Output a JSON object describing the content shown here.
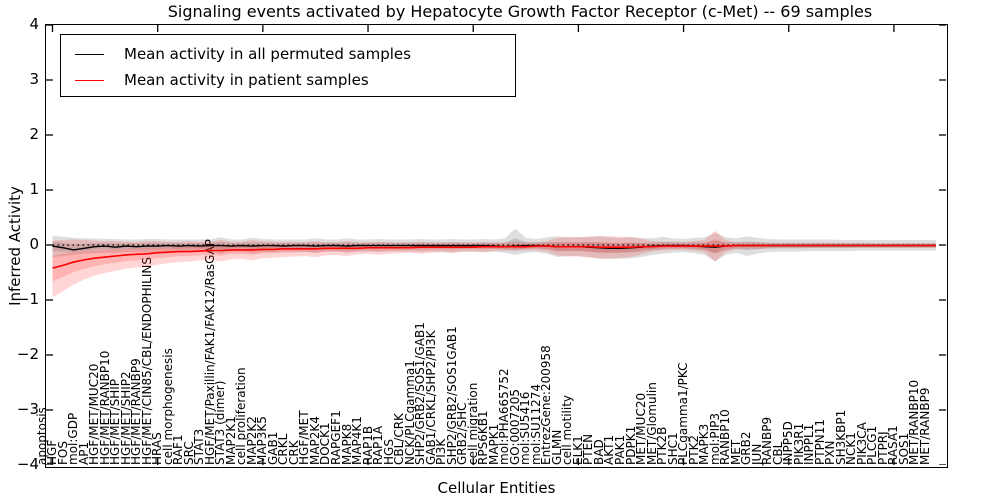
{
  "chart_data": {
    "type": "line",
    "title": "Signaling events activated by Hepatocyte Growth Factor Receptor (c-Met) -- 69 samples",
    "xlabel": "Cellular Entities",
    "ylabel": "Inferred Activity",
    "ylim": [
      -4,
      4
    ],
    "yticks": [
      4,
      3,
      2,
      1,
      0,
      -1,
      -2,
      -3,
      -4
    ],
    "grid": false,
    "legend_position": "upper left",
    "zero_line": {
      "y": 0,
      "style": "dotted",
      "color": "#000000"
    },
    "categories": [
      "apoptosis",
      "HGF",
      "FOS",
      "mol:GDP",
      "AP1",
      "HGF/MET/MUC20",
      "HGF/MET/RANBP10",
      "HGF/MET/SHIP",
      "HGF/MET/SHIP2",
      "HGF/MET/RANBP9",
      "HGF/MET/CIN85/CBL/ENDOPHILINS",
      "HRAS",
      "cell morphogenesis",
      "RAF1",
      "SRC",
      "STAT3",
      "HGF/MET/Paxillin/FAK1/FAK12/RasGAP",
      "STAT3 (dimer)",
      "MAP2K1",
      "cell proliferation",
      "MAP2K2",
      "MAP3K5",
      "GAB1",
      "CRKL",
      "CRK",
      "HGF/MET",
      "MAP2K4",
      "DOCK1",
      "RAPGEF1",
      "MAPK8",
      "MAP4K1",
      "RAP1B",
      "RAP1A",
      "HGS",
      "CBL/CRK",
      "NCK/PLCgamma1",
      "SHP2/GRB2/SOS1/GAB1",
      "GAB1/CRKL/SHP2/PI3K",
      "PI3K",
      "SHP2/GRB2/SOS1GAB1",
      "GRB2/SHC",
      "cell migration",
      "RPS6KB1",
      "MAPK1",
      "mol:PHA665752",
      "GO:0007205",
      "mol:SU5416",
      "mol:SU11274",
      "EntrezGene:200958",
      "GLMN",
      "cell motility",
      "ELK1",
      "PTEN",
      "BAD",
      "AKT1",
      "PAK1",
      "PDPK1",
      "MET/MUC20",
      "MET/Glomulin",
      "PTK2B",
      "SHC1",
      "PLCgamma1/PKC",
      "PTK2",
      "MAPK3",
      "mol:PIP3",
      "RANBP10",
      "MET",
      "GRB2",
      "JUN",
      "RANBP9",
      "CBL",
      "INPP5D",
      "PIK3R1",
      "INPPL1",
      "PTPN11",
      "PXN",
      "SH3KBP1",
      "NCK1",
      "PIK3CA",
      "PLCG1",
      "PTPRJ",
      "RASA1",
      "SOS1",
      "MET/RANBP10",
      "MET/RANBP9"
    ],
    "series": [
      {
        "name": "Mean activity in all permuted samples",
        "color": "#000000",
        "band_color_rgb": "0,0,0",
        "band_alpha": 0.13,
        "values": [
          -0.02,
          -0.05,
          -0.09,
          -0.06,
          -0.03,
          -0.02,
          -0.04,
          -0.02,
          -0.03,
          -0.02,
          -0.02,
          -0.01,
          -0.02,
          -0.01,
          -0.02,
          -0.01,
          -0.01,
          -0.02,
          -0.01,
          -0.02,
          -0.01,
          -0.01,
          -0.02,
          -0.01,
          -0.01,
          -0.02,
          -0.01,
          -0.01,
          -0.02,
          -0.01,
          -0.01,
          -0.01,
          -0.01,
          -0.01,
          -0.01,
          -0.01,
          -0.01,
          -0.01,
          -0.01,
          -0.01,
          -0.01,
          -0.01,
          -0.02,
          -0.03,
          -0.02,
          -0.01,
          -0.01,
          -0.02,
          -0.03,
          -0.03,
          -0.03,
          -0.04,
          -0.05,
          -0.06,
          -0.06,
          -0.05,
          -0.04,
          -0.02,
          -0.01,
          -0.01,
          -0.01,
          -0.02,
          -0.03,
          -0.04,
          -0.02,
          -0.01,
          -0.01,
          -0.01,
          -0.01,
          -0.01,
          -0.01,
          -0.01,
          -0.01,
          -0.01,
          -0.01,
          -0.01,
          -0.01,
          -0.01,
          -0.01,
          -0.01,
          -0.01,
          -0.01,
          -0.01,
          -0.01,
          -0.01
        ],
        "band_upper": [
          0.17,
          0.15,
          0.13,
          0.12,
          0.12,
          0.11,
          0.11,
          0.1,
          0.1,
          0.11,
          0.11,
          0.1,
          0.1,
          0.1,
          0.1,
          0.1,
          0.14,
          0.1,
          0.1,
          0.13,
          0.11,
          0.1,
          0.1,
          0.1,
          0.1,
          0.12,
          0.1,
          0.1,
          0.12,
          0.1,
          0.1,
          0.11,
          0.1,
          0.1,
          0.1,
          0.11,
          0.1,
          0.1,
          0.11,
          0.1,
          0.1,
          0.11,
          0.1,
          0.12,
          0.3,
          0.13,
          0.11,
          0.14,
          0.16,
          0.14,
          0.14,
          0.15,
          0.16,
          0.14,
          0.13,
          0.15,
          0.13,
          0.12,
          0.15,
          0.12,
          0.11,
          0.13,
          0.14,
          0.22,
          0.14,
          0.12,
          0.16,
          0.13,
          0.11,
          0.1,
          0.1,
          0.1,
          0.1,
          0.1,
          0.1,
          0.09,
          0.09,
          0.09,
          0.09,
          0.09,
          0.09,
          0.09,
          0.09,
          0.09,
          0.09
        ],
        "band_lower": [
          -0.22,
          -0.2,
          -0.18,
          -0.16,
          -0.15,
          -0.14,
          -0.14,
          -0.13,
          -0.13,
          -0.13,
          -0.13,
          -0.12,
          -0.13,
          -0.12,
          -0.12,
          -0.12,
          -0.16,
          -0.12,
          -0.12,
          -0.15,
          -0.13,
          -0.12,
          -0.12,
          -0.12,
          -0.12,
          -0.14,
          -0.12,
          -0.12,
          -0.14,
          -0.12,
          -0.12,
          -0.13,
          -0.12,
          -0.12,
          -0.12,
          -0.13,
          -0.12,
          -0.12,
          -0.13,
          -0.12,
          -0.12,
          -0.13,
          -0.12,
          -0.14,
          -0.18,
          -0.14,
          -0.13,
          -0.16,
          -0.22,
          -0.2,
          -0.2,
          -0.22,
          -0.25,
          -0.26,
          -0.25,
          -0.24,
          -0.22,
          -0.18,
          -0.16,
          -0.14,
          -0.13,
          -0.15,
          -0.18,
          -0.3,
          -0.18,
          -0.14,
          -0.2,
          -0.16,
          -0.13,
          -0.12,
          -0.12,
          -0.12,
          -0.11,
          -0.11,
          -0.11,
          -0.11,
          -0.11,
          -0.1,
          -0.1,
          -0.1,
          -0.1,
          -0.1,
          -0.1,
          -0.1,
          -0.1
        ]
      },
      {
        "name": "Mean activity in patient samples",
        "color": "#ff0000",
        "band_color_rgb": "255,45,45",
        "band_alpha": 0.2,
        "values": [
          -0.42,
          -0.37,
          -0.31,
          -0.27,
          -0.24,
          -0.22,
          -0.2,
          -0.18,
          -0.17,
          -0.16,
          -0.14,
          -0.13,
          -0.12,
          -0.12,
          -0.11,
          -0.1,
          -0.1,
          -0.09,
          -0.09,
          -0.09,
          -0.08,
          -0.08,
          -0.07,
          -0.07,
          -0.07,
          -0.07,
          -0.06,
          -0.06,
          -0.06,
          -0.06,
          -0.05,
          -0.05,
          -0.05,
          -0.05,
          -0.05,
          -0.04,
          -0.04,
          -0.04,
          -0.04,
          -0.04,
          -0.04,
          -0.03,
          -0.03,
          -0.03,
          -0.03,
          -0.03,
          -0.02,
          -0.02,
          -0.03,
          -0.03,
          -0.03,
          -0.03,
          -0.04,
          -0.04,
          -0.04,
          -0.04,
          -0.03,
          -0.03,
          -0.02,
          -0.02,
          -0.02,
          -0.02,
          -0.02,
          -0.02,
          -0.02,
          -0.01,
          -0.01,
          -0.01,
          -0.01,
          -0.01,
          -0.01,
          -0.01,
          -0.01,
          -0.01,
          -0.01,
          -0.01,
          -0.01,
          -0.01,
          -0.01,
          -0.01,
          -0.01,
          -0.01,
          -0.01,
          -0.01,
          -0.01
        ],
        "band_upper": [
          0.08,
          0.09,
          0.1,
          0.09,
          0.08,
          0.07,
          0.07,
          0.06,
          0.06,
          0.07,
          0.07,
          0.06,
          0.06,
          0.07,
          0.06,
          0.06,
          0.09,
          0.06,
          0.06,
          0.09,
          0.07,
          0.06,
          0.06,
          0.06,
          0.05,
          0.07,
          0.05,
          0.05,
          0.07,
          0.05,
          0.05,
          0.06,
          0.05,
          0.05,
          0.05,
          0.06,
          0.05,
          0.05,
          0.06,
          0.05,
          0.05,
          0.05,
          0.05,
          0.05,
          0.06,
          0.05,
          0.05,
          0.07,
          0.13,
          0.14,
          0.14,
          0.15,
          0.16,
          0.16,
          0.15,
          0.14,
          0.11,
          0.07,
          0.06,
          0.06,
          0.06,
          0.07,
          0.09,
          0.26,
          0.09,
          0.05,
          0.05,
          0.05,
          0.04,
          0.04,
          0.04,
          0.04,
          0.04,
          0.04,
          0.04,
          0.04,
          0.04,
          0.04,
          0.03,
          0.03,
          0.03,
          0.03,
          0.03,
          0.03,
          0.03
        ],
        "band_lower": [
          -0.95,
          -0.84,
          -0.72,
          -0.63,
          -0.56,
          -0.51,
          -0.47,
          -0.43,
          -0.41,
          -0.39,
          -0.36,
          -0.33,
          -0.31,
          -0.3,
          -0.28,
          -0.27,
          -0.3,
          -0.26,
          -0.25,
          -0.28,
          -0.24,
          -0.23,
          -0.22,
          -0.21,
          -0.2,
          -0.22,
          -0.19,
          -0.18,
          -0.2,
          -0.17,
          -0.16,
          -0.18,
          -0.16,
          -0.15,
          -0.14,
          -0.16,
          -0.14,
          -0.13,
          -0.15,
          -0.12,
          -0.12,
          -0.13,
          -0.11,
          -0.11,
          -0.11,
          -0.1,
          -0.1,
          -0.12,
          -0.19,
          -0.21,
          -0.21,
          -0.23,
          -0.24,
          -0.24,
          -0.23,
          -0.22,
          -0.17,
          -0.12,
          -0.1,
          -0.09,
          -0.09,
          -0.1,
          -0.13,
          -0.3,
          -0.13,
          -0.08,
          -0.07,
          -0.07,
          -0.06,
          -0.06,
          -0.06,
          -0.06,
          -0.06,
          -0.05,
          -0.05,
          -0.05,
          -0.05,
          -0.05,
          -0.05,
          -0.05,
          -0.05,
          -0.05,
          -0.05,
          -0.05,
          -0.05
        ]
      }
    ]
  }
}
